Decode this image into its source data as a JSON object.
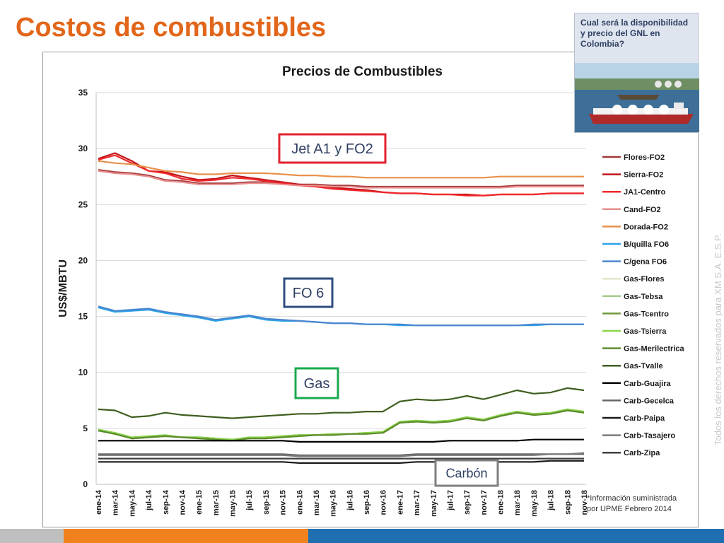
{
  "slide": {
    "title": "Costos de combustibles",
    "callout_text": "Cual será la disponibilidad y precio del GNL en Colombia?",
    "watermark": "Todos los derechos reservados para XM S.A. E.S.P.",
    "footnote_line1": "*Información suministrada",
    "footnote_line2": "por UPME Febrero 2014",
    "bar_colors": [
      "#bfbfbf",
      "#f0821e",
      "#1f6fb0"
    ]
  },
  "chart_data": {
    "type": "line",
    "title": "Precios de Combustibles",
    "xlabel": "",
    "ylabel": "US$/MBTU",
    "ylim": [
      0,
      35
    ],
    "yticks": [
      0,
      5,
      10,
      15,
      20,
      25,
      30,
      35
    ],
    "grid": "horizontal",
    "legend_position": "right",
    "x": [
      "ene-14",
      "mar-14",
      "may-14",
      "jul-14",
      "sep-14",
      "nov-14",
      "ene-15",
      "mar-15",
      "may-15",
      "jul-15",
      "sep-15",
      "nov-15",
      "ene-16",
      "mar-16",
      "may-16",
      "jul-16",
      "sep-16",
      "nov-16",
      "ene-17",
      "mar-17",
      "may-17",
      "jul-17",
      "sep-17",
      "nov-17",
      "ene-18",
      "mar-18",
      "may-18",
      "jul-18",
      "sep-18",
      "nov-18"
    ],
    "annotations": [
      {
        "text": "Jet A1 y FO2",
        "color": "#e3212c",
        "text_color": "#2e3f62"
      },
      {
        "text": "FO 6",
        "color": "#2e4d7f",
        "text_color": "#2e3f62"
      },
      {
        "text": "Gas",
        "color": "#1aa84e",
        "text_color": "#2e3f62"
      },
      {
        "text": "Carbón",
        "color": "#7f7f7f",
        "text_color": "#2e3f62"
      }
    ],
    "series": [
      {
        "name": "Flores-FO2",
        "color": "#a33a3a",
        "values": [
          28.1,
          27.9,
          27.8,
          27.6,
          27.2,
          27.1,
          26.9,
          26.9,
          26.9,
          27.0,
          27.0,
          26.9,
          26.8,
          26.8,
          26.7,
          26.7,
          26.6,
          26.6,
          26.6,
          26.6,
          26.6,
          26.6,
          26.6,
          26.6,
          26.6,
          26.7,
          26.7,
          26.7,
          26.7,
          26.7
        ]
      },
      {
        "name": "Sierra-FO2",
        "color": "#c0141a",
        "values": [
          29.1,
          29.6,
          28.9,
          28.0,
          27.9,
          27.5,
          27.2,
          27.3,
          27.6,
          27.4,
          27.2,
          27.0,
          26.8,
          26.7,
          26.5,
          26.4,
          26.3,
          26.1,
          26.0,
          26.0,
          25.9,
          25.9,
          25.9,
          25.8,
          25.9,
          25.9,
          25.9,
          26.0,
          26.0,
          26.0
        ]
      },
      {
        "name": "JA1-Centro",
        "color": "#f0282a",
        "values": [
          29.0,
          29.4,
          28.7,
          28.0,
          27.8,
          27.3,
          27.1,
          27.2,
          27.4,
          27.3,
          27.1,
          26.9,
          26.7,
          26.6,
          26.4,
          26.3,
          26.2,
          26.1,
          26.0,
          26.0,
          25.9,
          25.9,
          25.8,
          25.8,
          25.9,
          25.9,
          25.9,
          26.0,
          26.0,
          26.0
        ]
      },
      {
        "name": "Cand-FO2",
        "color": "#e89090",
        "values": [
          28.0,
          27.8,
          27.7,
          27.5,
          27.1,
          27.0,
          26.8,
          26.8,
          26.8,
          26.9,
          26.9,
          26.8,
          26.7,
          26.7,
          26.6,
          26.6,
          26.5,
          26.5,
          26.5,
          26.5,
          26.5,
          26.5,
          26.5,
          26.5,
          26.5,
          26.6,
          26.6,
          26.6,
          26.6,
          26.6
        ]
      },
      {
        "name": "Dorada-FO2",
        "color": "#e8904a",
        "values": [
          28.9,
          28.7,
          28.6,
          28.3,
          28.0,
          27.9,
          27.7,
          27.7,
          27.8,
          27.8,
          27.8,
          27.7,
          27.6,
          27.6,
          27.5,
          27.5,
          27.4,
          27.4,
          27.4,
          27.4,
          27.4,
          27.4,
          27.4,
          27.4,
          27.5,
          27.5,
          27.5,
          27.5,
          27.5,
          27.5
        ]
      },
      {
        "name": "B/quilla FO6",
        "color": "#2aa4e8",
        "values": [
          15.8,
          15.4,
          15.5,
          15.6,
          15.3,
          15.1,
          14.9,
          14.6,
          14.8,
          15.0,
          14.7,
          14.6,
          14.6,
          14.5,
          14.4,
          14.4,
          14.3,
          14.3,
          14.2,
          14.2,
          14.2,
          14.2,
          14.2,
          14.2,
          14.2,
          14.2,
          14.2,
          14.3,
          14.3,
          14.3
        ]
      },
      {
        "name": "C/gena FO6",
        "color": "#4a86d0",
        "values": [
          15.9,
          15.5,
          15.6,
          15.7,
          15.4,
          15.2,
          15.0,
          14.7,
          14.9,
          15.1,
          14.8,
          14.7,
          14.6,
          14.5,
          14.4,
          14.4,
          14.3,
          14.3,
          14.3,
          14.2,
          14.2,
          14.2,
          14.2,
          14.2,
          14.2,
          14.2,
          14.3,
          14.3,
          14.3,
          14.3
        ]
      },
      {
        "name": "Gas-Flores",
        "color": "#e2e6c8",
        "values": [
          4.8,
          4.5,
          4.1,
          4.2,
          4.4,
          4.2,
          4.2,
          4.1,
          4.0,
          4.1,
          4.2,
          4.3,
          4.4,
          4.4,
          4.5,
          4.5,
          4.6,
          4.6,
          5.6,
          5.7,
          5.6,
          5.7,
          6.0,
          5.7,
          6.1,
          6.4,
          6.2,
          6.3,
          6.6,
          6.5
        ]
      },
      {
        "name": "Gas-Tebsa",
        "color": "#a6cc8e",
        "values": [
          4.8,
          4.6,
          4.1,
          4.2,
          4.3,
          4.2,
          4.2,
          4.1,
          4.0,
          4.1,
          4.2,
          4.3,
          4.4,
          4.4,
          4.5,
          4.5,
          4.6,
          4.6,
          5.5,
          5.7,
          5.6,
          5.7,
          6.0,
          5.7,
          6.2,
          6.5,
          6.3,
          6.3,
          6.7,
          6.5
        ]
      },
      {
        "name": "Gas-Tcentro",
        "color": "#6f9a3a",
        "values": [
          4.8,
          4.5,
          4.1,
          4.2,
          4.3,
          4.2,
          4.2,
          4.1,
          4.0,
          4.1,
          4.2,
          4.3,
          4.4,
          4.4,
          4.5,
          4.5,
          4.6,
          4.6,
          5.5,
          5.6,
          5.6,
          5.7,
          5.9,
          5.7,
          6.1,
          6.4,
          6.2,
          6.3,
          6.6,
          6.4
        ]
      },
      {
        "name": "Gas-Tsierra",
        "color": "#8ad64a",
        "values": [
          4.9,
          4.6,
          4.2,
          4.3,
          4.4,
          4.2,
          4.2,
          4.1,
          4.0,
          4.2,
          4.2,
          4.3,
          4.4,
          4.4,
          4.5,
          4.5,
          4.6,
          4.7,
          5.6,
          5.7,
          5.6,
          5.7,
          6.0,
          5.8,
          6.2,
          6.5,
          6.3,
          6.4,
          6.7,
          6.5
        ]
      },
      {
        "name": "Gas-Merilectrica",
        "color": "#5e8c2e",
        "values": [
          4.8,
          4.5,
          4.1,
          4.2,
          4.3,
          4.2,
          4.1,
          4.0,
          3.9,
          4.1,
          4.1,
          4.2,
          4.3,
          4.4,
          4.4,
          4.5,
          4.5,
          4.6,
          5.5,
          5.6,
          5.5,
          5.6,
          5.9,
          5.7,
          6.1,
          6.4,
          6.2,
          6.3,
          6.6,
          6.4
        ]
      },
      {
        "name": "Gas-Tvalle",
        "color": "#3f5e1f",
        "values": [
          6.7,
          6.6,
          6.0,
          6.1,
          6.4,
          6.2,
          6.1,
          6.0,
          5.9,
          6.0,
          6.1,
          6.2,
          6.3,
          6.3,
          6.4,
          6.4,
          6.5,
          6.5,
          7.4,
          7.6,
          7.5,
          7.6,
          7.9,
          7.6,
          8.0,
          8.4,
          8.1,
          8.2,
          8.6,
          8.4
        ]
      },
      {
        "name": "Carb-Guajira",
        "color": "#000000",
        "values": [
          3.9,
          3.9,
          3.9,
          3.9,
          3.9,
          3.9,
          3.9,
          3.9,
          3.9,
          3.9,
          3.9,
          3.9,
          3.8,
          3.8,
          3.8,
          3.8,
          3.8,
          3.8,
          3.8,
          3.8,
          3.8,
          3.9,
          3.9,
          3.9,
          3.9,
          3.9,
          4.0,
          4.0,
          4.0,
          4.0
        ]
      },
      {
        "name": "Carb-Gecelca",
        "color": "#666666",
        "values": [
          2.7,
          2.7,
          2.7,
          2.7,
          2.7,
          2.7,
          2.7,
          2.7,
          2.7,
          2.7,
          2.7,
          2.7,
          2.6,
          2.6,
          2.6,
          2.6,
          2.6,
          2.6,
          2.6,
          2.7,
          2.7,
          2.7,
          2.7,
          2.7,
          2.7,
          2.7,
          2.7,
          2.7,
          2.7,
          2.7
        ]
      },
      {
        "name": "Carb-Paipa",
        "color": "#1a1a1a",
        "values": [
          2.0,
          2.0,
          2.0,
          2.0,
          2.0,
          2.0,
          2.0,
          2.0,
          2.0,
          2.0,
          2.0,
          2.0,
          1.9,
          1.9,
          1.9,
          1.9,
          1.9,
          1.9,
          1.9,
          2.0,
          2.0,
          2.0,
          2.0,
          2.0,
          2.0,
          2.0,
          2.0,
          2.1,
          2.1,
          2.1
        ]
      },
      {
        "name": "Carb-Tasajero",
        "color": "#7a7a7a",
        "values": [
          2.6,
          2.6,
          2.6,
          2.6,
          2.6,
          2.6,
          2.6,
          2.6,
          2.6,
          2.6,
          2.6,
          2.6,
          2.5,
          2.5,
          2.5,
          2.5,
          2.5,
          2.5,
          2.5,
          2.6,
          2.6,
          2.6,
          2.6,
          2.6,
          2.6,
          2.6,
          2.6,
          2.7,
          2.7,
          2.8
        ]
      },
      {
        "name": "Carb-Zipa",
        "color": "#404040",
        "values": [
          2.3,
          2.3,
          2.3,
          2.3,
          2.3,
          2.3,
          2.3,
          2.3,
          2.3,
          2.3,
          2.3,
          2.3,
          2.3,
          2.3,
          2.3,
          2.3,
          2.3,
          2.3,
          2.3,
          2.3,
          2.3,
          2.3,
          2.3,
          2.3,
          2.3,
          2.3,
          2.3,
          2.3,
          2.3,
          2.3
        ]
      }
    ]
  }
}
